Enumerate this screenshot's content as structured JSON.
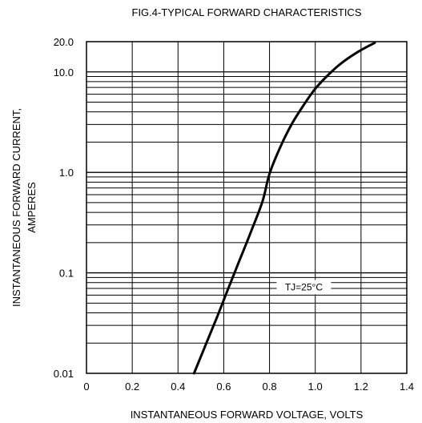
{
  "chart_data": {
    "type": "line",
    "title": "FIG.4-TYPICAL FORWARD CHARACTERISTICS",
    "xlabel": "INSTANTANEOUS FORWARD VOLTAGE, VOLTS",
    "ylabel_line1": "INSTANTANEOUS FORWARD CURRENT,",
    "ylabel_line2": "AMPERES",
    "xlim": [
      0,
      1.4
    ],
    "ylim": [
      0.01,
      20
    ],
    "y_scale": "log",
    "grid": true,
    "x_ticks": [
      {
        "value": 0,
        "label": "0"
      },
      {
        "value": 0.2,
        "label": "0.2"
      },
      {
        "value": 0.4,
        "label": "0.4"
      },
      {
        "value": 0.6,
        "label": "0.6"
      },
      {
        "value": 0.8,
        "label": "0.8"
      },
      {
        "value": 1.0,
        "label": "1.0"
      },
      {
        "value": 1.2,
        "label": "1.2"
      },
      {
        "value": 1.4,
        "label": "1.4"
      }
    ],
    "y_ticks": [
      {
        "value": 0.01,
        "label": "0.01"
      },
      {
        "value": 0.1,
        "label": "0.1"
      },
      {
        "value": 1,
        "label": "1.0"
      },
      {
        "value": 10,
        "label": "10.0"
      },
      {
        "value": 20,
        "label": "20.0"
      }
    ],
    "annotation": "TJ=25°C",
    "annotation_at": {
      "x": 0.95,
      "y": 0.072
    },
    "series": [
      {
        "x": [
          0.47,
          0.52,
          0.57,
          0.62,
          0.67,
          0.72,
          0.77,
          0.8,
          0.85,
          0.9,
          0.95,
          1.0,
          1.06,
          1.12,
          1.19,
          1.26
        ],
        "y": [
          0.01,
          0.019,
          0.036,
          0.07,
          0.135,
          0.26,
          0.52,
          0.97,
          1.85,
          3.1,
          4.7,
          6.8,
          9.5,
          12.5,
          16.0,
          19.5
        ]
      }
    ]
  }
}
